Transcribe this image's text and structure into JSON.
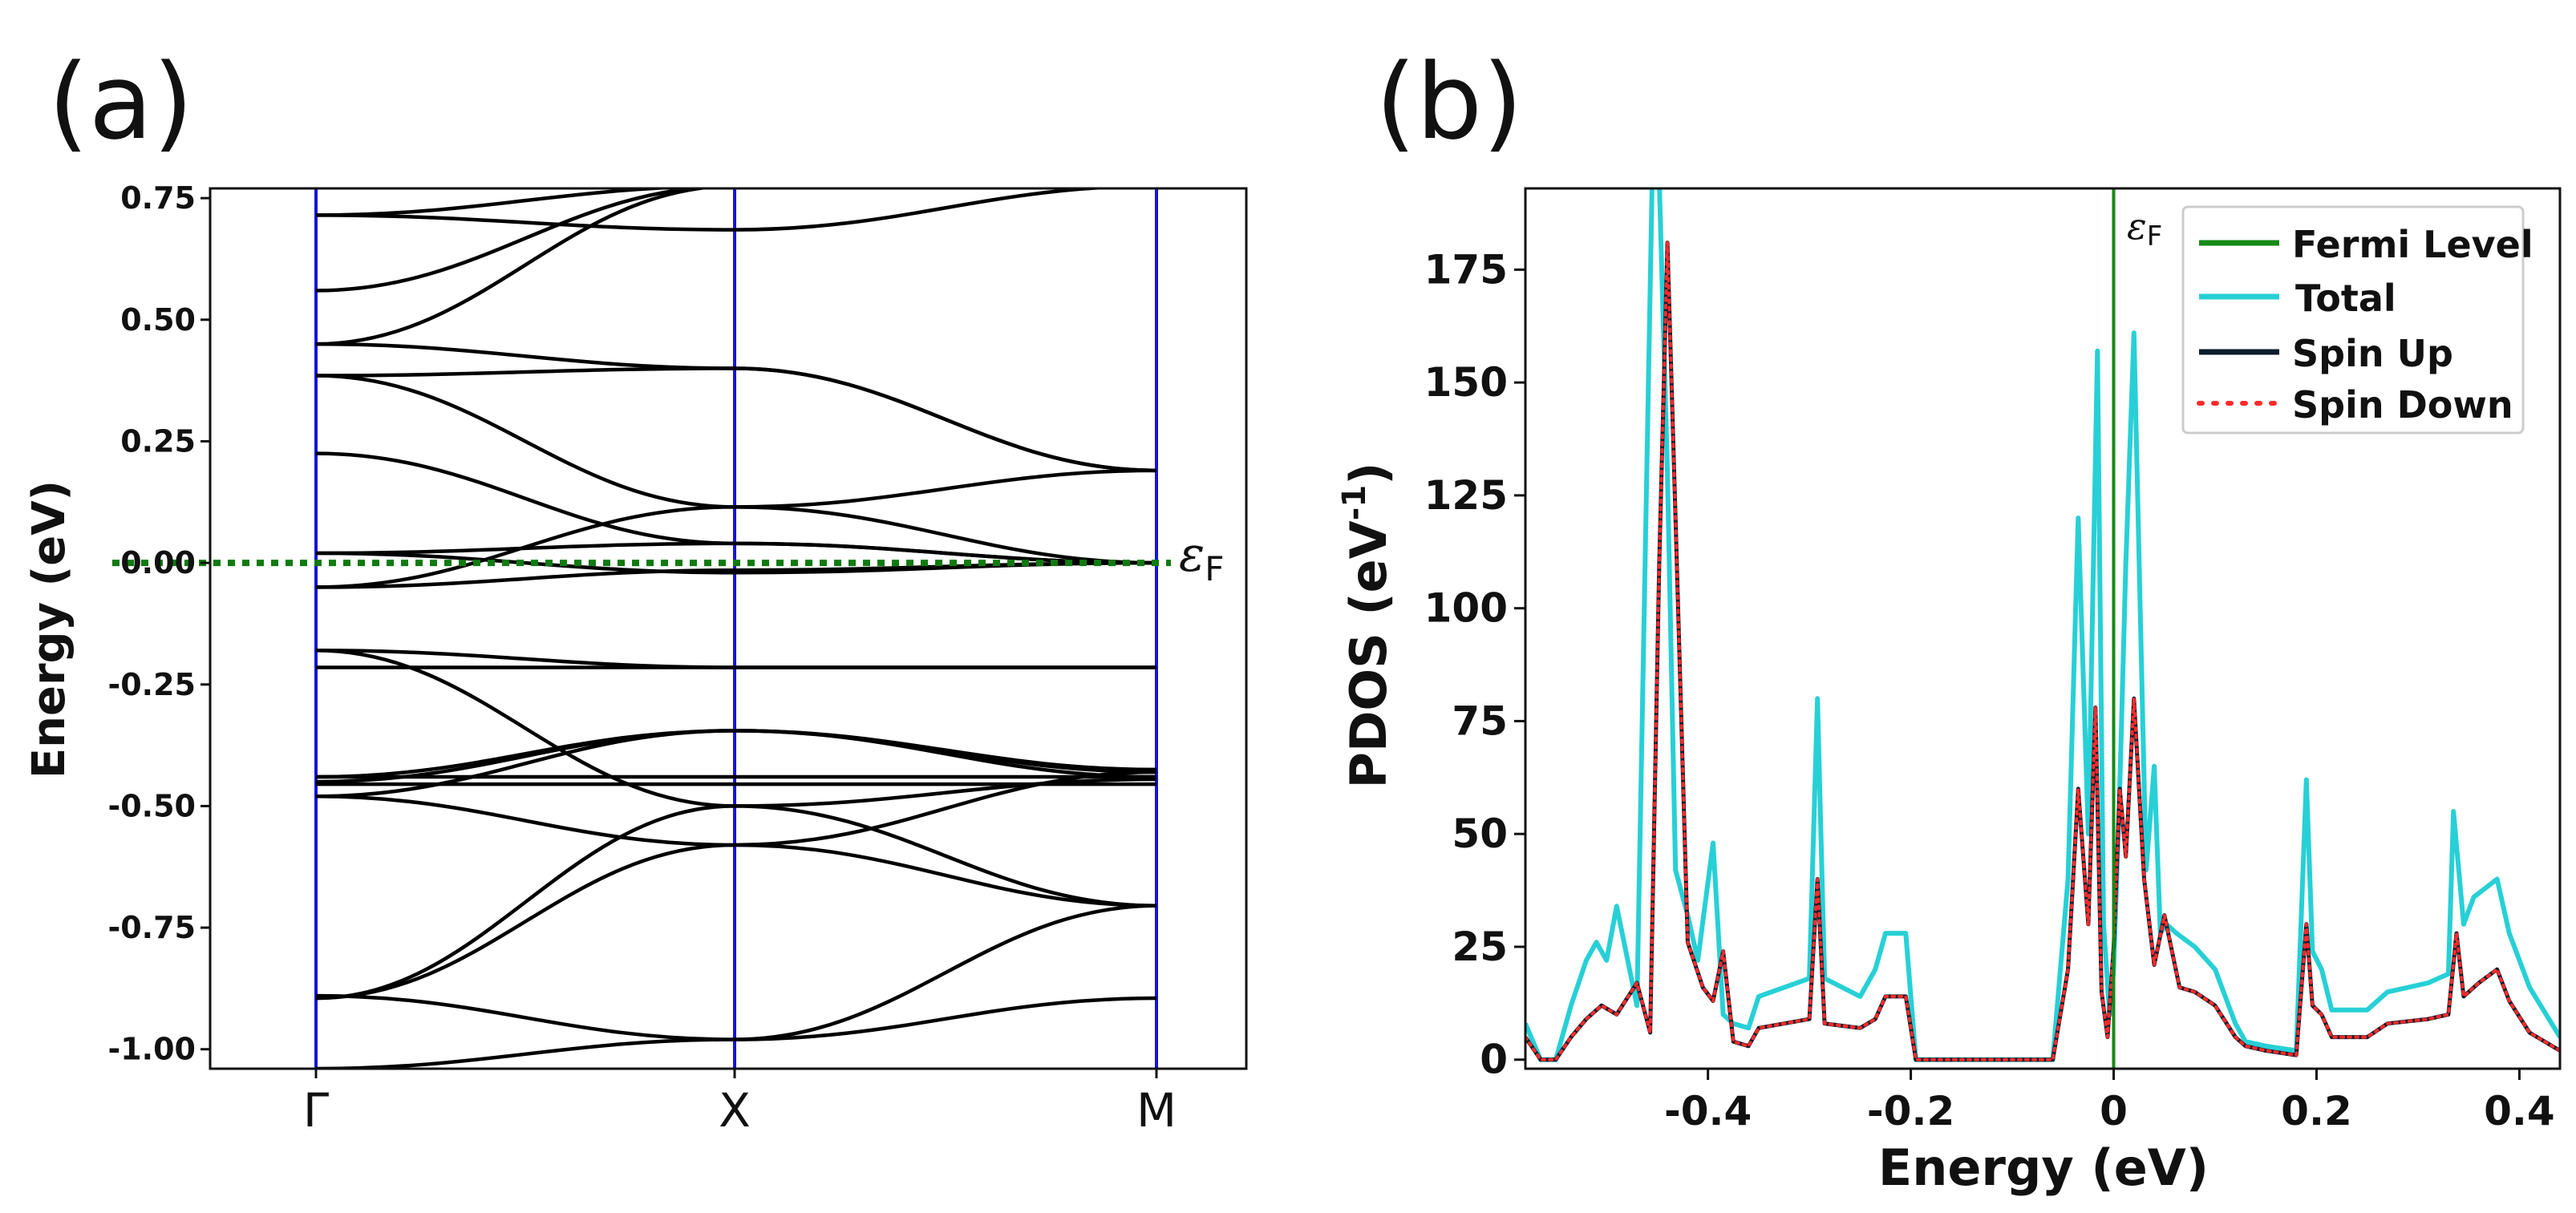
{
  "chart_data": [
    {
      "panel": "(a)",
      "type": "line",
      "subtype": "band-structure",
      "ylabel": "Energy (eV)",
      "ylim": [
        -1.04,
        0.77
      ],
      "yticks": [
        "0.75",
        "0.50",
        "0.25",
        "0.00",
        "-0.25",
        "-0.50",
        "-0.75",
        "-1.00"
      ],
      "ytick_values": [
        0.75,
        0.5,
        0.25,
        0.0,
        -0.25,
        -0.5,
        -0.75,
        -1.0
      ],
      "kpoints": [
        "Γ",
        "X",
        "M"
      ],
      "fermi_label": "ε",
      "fermi_subscript": "F",
      "fermi_energy": 0.0,
      "bands": [
        [
          0.715,
          0.685,
          0.775
        ],
        [
          0.715,
          0.775
        ],
        [
          0.56,
          0.775
        ],
        [
          0.45,
          0.775
        ],
        [
          0.45,
          0.4,
          0.19
        ],
        [
          0.385,
          0.4,
          0.19
        ],
        [
          0.385,
          0.115,
          0.19
        ],
        [
          0.225,
          0.04,
          0.0
        ],
        [
          0.02,
          0.04,
          0.0
        ],
        [
          0.02,
          -0.02,
          0.0
        ],
        [
          -0.05,
          0.115,
          0.0
        ],
        [
          -0.05,
          -0.015,
          0.0
        ],
        [
          -0.18,
          -0.215,
          -0.215
        ],
        [
          -0.215,
          -0.215,
          -0.215
        ],
        [
          -0.18,
          -0.5,
          -0.705
        ],
        [
          -0.44,
          -0.345,
          -0.425
        ],
        [
          -0.45,
          -0.345,
          -0.44
        ],
        [
          -0.455,
          -0.455,
          -0.455
        ],
        [
          -0.44,
          -0.44,
          -0.44
        ],
        [
          -0.48,
          -0.58,
          -0.43
        ],
        [
          -0.48,
          -0.345,
          -0.43
        ],
        [
          -0.895,
          -0.5,
          -0.445
        ],
        [
          -0.895,
          -0.58,
          -0.705
        ],
        [
          -0.89,
          -0.98,
          -0.705
        ],
        [
          -1.04,
          -0.98,
          -0.895
        ]
      ]
    },
    {
      "panel": "(b)",
      "type": "line",
      "subtype": "projected-density-of-states",
      "xlabel": "Energy (eV)",
      "ylabel_main": "PDOS (eV",
      "ylabel_sup": "-1",
      "ylabel_end": ")",
      "xlim": [
        -0.58,
        0.44
      ],
      "ylim": [
        -2,
        193
      ],
      "xticks": [
        "-0.4",
        "-0.2",
        "0",
        "0.2",
        "0.4"
      ],
      "xtick_values": [
        -0.4,
        -0.2,
        0.0,
        0.2,
        0.4
      ],
      "yticks": [
        "175",
        "150",
        "125",
        "100",
        "75",
        "50",
        "25",
        "0"
      ],
      "ytick_values": [
        175,
        150,
        125,
        100,
        75,
        50,
        25,
        0
      ],
      "fermi_label": "ε",
      "fermi_subscript": "F",
      "fermi_energy": 0.0,
      "legend_position": "top-right",
      "series": [
        {
          "name": "Total",
          "legend_words": [
            "Total"
          ],
          "color": "#27d0d6",
          "style": "solid",
          "x": [
            -0.58,
            -0.565,
            -0.55,
            -0.535,
            -0.52,
            -0.51,
            -0.5,
            -0.49,
            -0.47,
            -0.455,
            -0.448,
            -0.44,
            -0.432,
            -0.42,
            -0.41,
            -0.395,
            -0.385,
            -0.375,
            -0.36,
            -0.35,
            -0.3,
            -0.292,
            -0.285,
            -0.25,
            -0.235,
            -0.225,
            -0.205,
            -0.195,
            -0.182,
            -0.17,
            -0.1,
            -0.06,
            -0.045,
            -0.035,
            -0.025,
            -0.016,
            -0.01,
            -0.004,
            0.0,
            0.006,
            0.012,
            0.02,
            0.032,
            0.04,
            0.046,
            0.052,
            0.062,
            0.08,
            0.1,
            0.12,
            0.13,
            0.15,
            0.18,
            0.19,
            0.196,
            0.205,
            0.215,
            0.25,
            0.27,
            0.31,
            0.33,
            0.335,
            0.345,
            0.355,
            0.378,
            0.39,
            0.41,
            0.44
          ],
          "y": [
            8,
            0,
            0,
            12,
            22,
            26,
            22,
            34,
            12,
            195,
            195,
            130,
            42,
            32,
            22,
            48,
            10,
            8,
            7,
            14,
            18,
            80,
            18,
            14,
            20,
            28,
            28,
            0,
            0,
            0,
            0,
            0,
            40,
            120,
            50,
            157,
            30,
            10,
            20,
            60,
            110,
            161,
            42,
            65,
            28,
            30,
            28,
            25,
            20,
            8,
            4,
            3,
            2,
            62,
            24,
            20,
            11,
            11,
            15,
            17,
            19,
            55,
            30,
            36,
            40,
            28,
            16,
            5
          ]
        },
        {
          "name": "Spin Up",
          "legend_words": [
            "Spin",
            "Up"
          ],
          "color": "#0d1b2a",
          "style": "solid",
          "x": [
            -0.58,
            -0.565,
            -0.55,
            -0.535,
            -0.52,
            -0.505,
            -0.49,
            -0.47,
            -0.457,
            -0.448,
            -0.44,
            -0.432,
            -0.42,
            -0.405,
            -0.395,
            -0.385,
            -0.375,
            -0.36,
            -0.35,
            -0.3,
            -0.292,
            -0.285,
            -0.25,
            -0.235,
            -0.225,
            -0.205,
            -0.195,
            -0.182,
            -0.17,
            -0.1,
            -0.06,
            -0.045,
            -0.035,
            -0.025,
            -0.018,
            -0.012,
            -0.006,
            0.0,
            0.006,
            0.012,
            0.02,
            0.03,
            0.04,
            0.05,
            0.065,
            0.08,
            0.1,
            0.12,
            0.13,
            0.15,
            0.18,
            0.19,
            0.196,
            0.205,
            0.215,
            0.25,
            0.27,
            0.31,
            0.33,
            0.338,
            0.345,
            0.36,
            0.378,
            0.39,
            0.41,
            0.44
          ],
          "y": [
            5,
            0,
            0,
            5,
            9,
            12,
            10,
            17,
            6,
            110,
            181,
            120,
            26,
            16,
            13,
            24,
            4,
            3,
            7,
            9,
            40,
            8,
            7,
            9,
            14,
            14,
            0,
            0,
            0,
            0,
            0,
            20,
            60,
            30,
            78,
            15,
            5,
            25,
            60,
            45,
            80,
            40,
            21,
            32,
            16,
            15,
            12,
            5,
            3,
            2,
            1,
            30,
            12,
            10,
            5,
            5,
            8,
            9,
            10,
            28,
            14,
            17,
            20,
            13,
            6,
            2
          ]
        },
        {
          "name": "Spin Down",
          "legend_words": [
            "Spin",
            "Down"
          ],
          "color": "#ff2a2a",
          "style": "dotted",
          "x": [
            -0.58,
            -0.565,
            -0.55,
            -0.535,
            -0.52,
            -0.505,
            -0.49,
            -0.47,
            -0.457,
            -0.448,
            -0.44,
            -0.432,
            -0.42,
            -0.405,
            -0.395,
            -0.385,
            -0.375,
            -0.36,
            -0.35,
            -0.3,
            -0.292,
            -0.285,
            -0.25,
            -0.235,
            -0.225,
            -0.205,
            -0.195,
            -0.182,
            -0.17,
            -0.1,
            -0.06,
            -0.045,
            -0.035,
            -0.025,
            -0.018,
            -0.012,
            -0.006,
            0.0,
            0.006,
            0.012,
            0.02,
            0.03,
            0.04,
            0.05,
            0.065,
            0.08,
            0.1,
            0.12,
            0.13,
            0.15,
            0.18,
            0.19,
            0.196,
            0.205,
            0.215,
            0.25,
            0.27,
            0.31,
            0.33,
            0.338,
            0.345,
            0.36,
            0.378,
            0.39,
            0.41,
            0.44
          ],
          "y": [
            5,
            0,
            0,
            5,
            9,
            12,
            10,
            17,
            6,
            110,
            181,
            120,
            26,
            16,
            13,
            24,
            4,
            3,
            7,
            9,
            40,
            8,
            7,
            9,
            14,
            14,
            0,
            0,
            0,
            0,
            0,
            20,
            60,
            30,
            78,
            15,
            5,
            25,
            60,
            45,
            80,
            40,
            21,
            32,
            16,
            15,
            12,
            5,
            3,
            2,
            1,
            30,
            12,
            10,
            5,
            5,
            8,
            9,
            10,
            28,
            14,
            17,
            20,
            13,
            6,
            2
          ]
        },
        {
          "name": "Fermi Level",
          "legend_words": [
            "Fermi",
            "Level"
          ],
          "color": "#148a14",
          "style": "vertical-line",
          "x": [
            0.0,
            0.0
          ],
          "y": [
            -2,
            193
          ]
        }
      ],
      "legend_order": [
        "Fermi Level",
        "Total",
        "Spin Up",
        "Spin Down"
      ]
    }
  ],
  "colors": {
    "band": "#000000",
    "kpoint_line": "#1515d6",
    "fermi_dotted": "#117a11",
    "fermi_line": "#148a14",
    "total": "#27d0d6",
    "spin_up": "#0d1b2a",
    "spin_down": "#ff2a2a"
  }
}
